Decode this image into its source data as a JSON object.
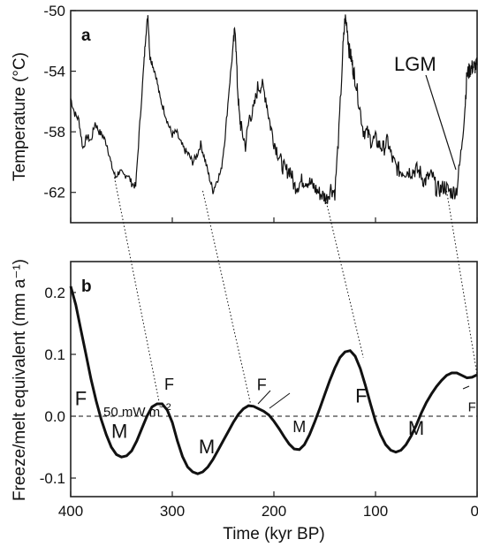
{
  "chart_data": [
    {
      "panel": "a",
      "type": "line",
      "xlabel": "",
      "ylabel": "Temperature (°C)",
      "xlim": [
        400,
        0
      ],
      "ylim": [
        -64,
        -50
      ],
      "yticks": [
        -50,
        -54,
        -58,
        -62
      ],
      "ytick_labels": [
        "-50",
        "-54",
        "-58",
        "-62"
      ],
      "series": [
        {
          "color": "#111111",
          "x": [
            400,
            396,
            392,
            388,
            384,
            380,
            376,
            372,
            368,
            364,
            360,
            356,
            352,
            348,
            344,
            340,
            336,
            332,
            328,
            326,
            324,
            322,
            320,
            316,
            312,
            308,
            304,
            300,
            296,
            292,
            288,
            284,
            280,
            276,
            272,
            268,
            264,
            260,
            256,
            252,
            248,
            244,
            240,
            238,
            236,
            234,
            232,
            228,
            224,
            220,
            216,
            212,
            208,
            204,
            200,
            196,
            192,
            188,
            184,
            180,
            176,
            172,
            168,
            164,
            160,
            156,
            152,
            148,
            144,
            140,
            136,
            132,
            130,
            128,
            126,
            124,
            122,
            120,
            116,
            112,
            108,
            104,
            100,
            96,
            92,
            88,
            84,
            80,
            76,
            72,
            68,
            64,
            60,
            56,
            52,
            48,
            44,
            40,
            36,
            32,
            28,
            24,
            20,
            16,
            12,
            10,
            8,
            6,
            4,
            2,
            0
          ],
          "values": [
            -55.8,
            -56.8,
            -57.2,
            -59.1,
            -58.3,
            -58.6,
            -57.4,
            -58.0,
            -58.3,
            -58.9,
            -60.2,
            -61.0,
            -60.6,
            -60.9,
            -60.8,
            -61.4,
            -61.6,
            -57.5,
            -53.6,
            -51.5,
            -50.3,
            -53.1,
            -53.4,
            -54.3,
            -55.8,
            -56.6,
            -57.5,
            -58.2,
            -58.0,
            -58.7,
            -59.2,
            -59.5,
            -60.0,
            -59.6,
            -58.8,
            -59.8,
            -60.9,
            -61.9,
            -61.2,
            -60.6,
            -58.3,
            -55.1,
            -52.3,
            -51.1,
            -54.8,
            -57.0,
            -57.8,
            -58.9,
            -57.0,
            -56.6,
            -55.1,
            -54.9,
            -55.7,
            -57.4,
            -58.6,
            -59.4,
            -60.2,
            -60.6,
            -60.5,
            -61.6,
            -61.5,
            -61.2,
            -61.2,
            -61.4,
            -61.7,
            -62.0,
            -62.2,
            -62.4,
            -61.7,
            -62.0,
            -58.0,
            -52.5,
            -50.5,
            -51.0,
            -52.6,
            -53.1,
            -53.9,
            -54.5,
            -56.2,
            -57.9,
            -58.1,
            -58.6,
            -58.5,
            -58.9,
            -59.1,
            -58.6,
            -59.7,
            -60.3,
            -60.6,
            -60.6,
            -60.6,
            -60.6,
            -60.5,
            -60.7,
            -61.3,
            -61.0,
            -60.9,
            -61.8,
            -61.8,
            -61.6,
            -61.9,
            -62.0,
            -61.8,
            -59.5,
            -56.4,
            -54.2,
            -54.0,
            -53.8,
            -53.7,
            -53.7,
            -53.6
          ]
        }
      ],
      "annotations": [
        {
          "text": "LGM",
          "x": 22,
          "y": -61.0
        }
      ]
    },
    {
      "panel": "b",
      "type": "line",
      "xlabel": "Time (kyr BP)",
      "ylabel": "Freeze/melt equivalent (mm a⁻¹)",
      "xlim": [
        400,
        0
      ],
      "ylim": [
        -0.13,
        0.25
      ],
      "xticks": [
        400,
        300,
        200,
        100,
        0
      ],
      "xtick_labels": [
        "400",
        "300",
        "200",
        "100",
        "0"
      ],
      "yticks": [
        0.2,
        0.1,
        0.0,
        -0.1
      ],
      "ytick_labels": [
        "0.2",
        "0.1",
        "0.0",
        "-0.1"
      ],
      "series": [
        {
          "color": "#111111",
          "x": [
            400,
            395,
            390,
            385,
            380,
            375,
            370,
            365,
            360,
            355,
            350,
            345,
            340,
            335,
            330,
            325,
            320,
            315,
            310,
            305,
            300,
            295,
            290,
            285,
            280,
            275,
            270,
            265,
            260,
            255,
            250,
            245,
            240,
            235,
            230,
            225,
            220,
            215,
            210,
            205,
            200,
            195,
            190,
            185,
            180,
            175,
            170,
            165,
            160,
            155,
            150,
            145,
            140,
            135,
            130,
            125,
            120,
            115,
            110,
            105,
            100,
            95,
            90,
            85,
            80,
            75,
            70,
            65,
            60,
            55,
            50,
            45,
            40,
            35,
            30,
            25,
            20,
            15,
            10,
            5,
            0
          ],
          "values": [
            0.21,
            0.18,
            0.14,
            0.1,
            0.06,
            0.025,
            -0.005,
            -0.03,
            -0.05,
            -0.062,
            -0.066,
            -0.064,
            -0.056,
            -0.04,
            -0.02,
            0.0,
            0.015,
            0.02,
            0.02,
            0.01,
            -0.01,
            -0.04,
            -0.065,
            -0.082,
            -0.09,
            -0.093,
            -0.09,
            -0.082,
            -0.07,
            -0.055,
            -0.04,
            -0.025,
            -0.01,
            0.003,
            0.012,
            0.017,
            0.016,
            0.012,
            0.008,
            0.002,
            -0.008,
            -0.02,
            -0.033,
            -0.045,
            -0.053,
            -0.054,
            -0.046,
            -0.03,
            -0.01,
            0.012,
            0.035,
            0.058,
            0.078,
            0.095,
            0.104,
            0.106,
            0.097,
            0.077,
            0.05,
            0.02,
            -0.008,
            -0.03,
            -0.046,
            -0.055,
            -0.058,
            -0.055,
            -0.046,
            -0.032,
            -0.015,
            0.005,
            0.022,
            0.036,
            0.048,
            0.058,
            0.066,
            0.07,
            0.07,
            0.066,
            0.062,
            0.063,
            0.067
          ]
        }
      ],
      "reference_line": {
        "y": 0.0,
        "style": "dashed",
        "label": "50 mW m⁻²"
      },
      "annotations": [
        {
          "text": "F",
          "x": 390,
          "y": 0.018,
          "size": "big"
        },
        {
          "text": "M",
          "x": 352,
          "y": -0.035,
          "size": "big"
        },
        {
          "text": "F",
          "x": 303,
          "y": 0.043,
          "size": "small"
        },
        {
          "text": "M",
          "x": 266,
          "y": -0.06,
          "size": "big"
        },
        {
          "text": "F",
          "x": 212,
          "y": 0.042,
          "size": "small"
        },
        {
          "text": "M",
          "x": 175,
          "y": -0.026,
          "size": "small"
        },
        {
          "text": "F",
          "x": 114,
          "y": 0.022,
          "size": "big"
        },
        {
          "text": "M",
          "x": 60,
          "y": -0.03,
          "size": "big"
        },
        {
          "text": "F",
          "x": 5,
          "y": 0.008,
          "size": "tiny"
        }
      ]
    }
  ],
  "links": [
    {
      "from_x": 357,
      "from_y": -61.0,
      "to_x": 312,
      "to_y": 0.015
    },
    {
      "from_x": 270,
      "from_y": -61.9,
      "to_x": 222,
      "to_y": 0.013
    },
    {
      "from_x": 150,
      "from_y": -62.2,
      "to_x": 112,
      "to_y": 0.095
    },
    {
      "from_x": 30,
      "from_y": -61.9,
      "to_x": 0,
      "to_y": 0.067
    }
  ],
  "panel_labels": {
    "a": "a",
    "b": "b"
  },
  "label_50mw": "50 mW m",
  "label_50mw_sup": "−2",
  "label_lgm": "LGM"
}
